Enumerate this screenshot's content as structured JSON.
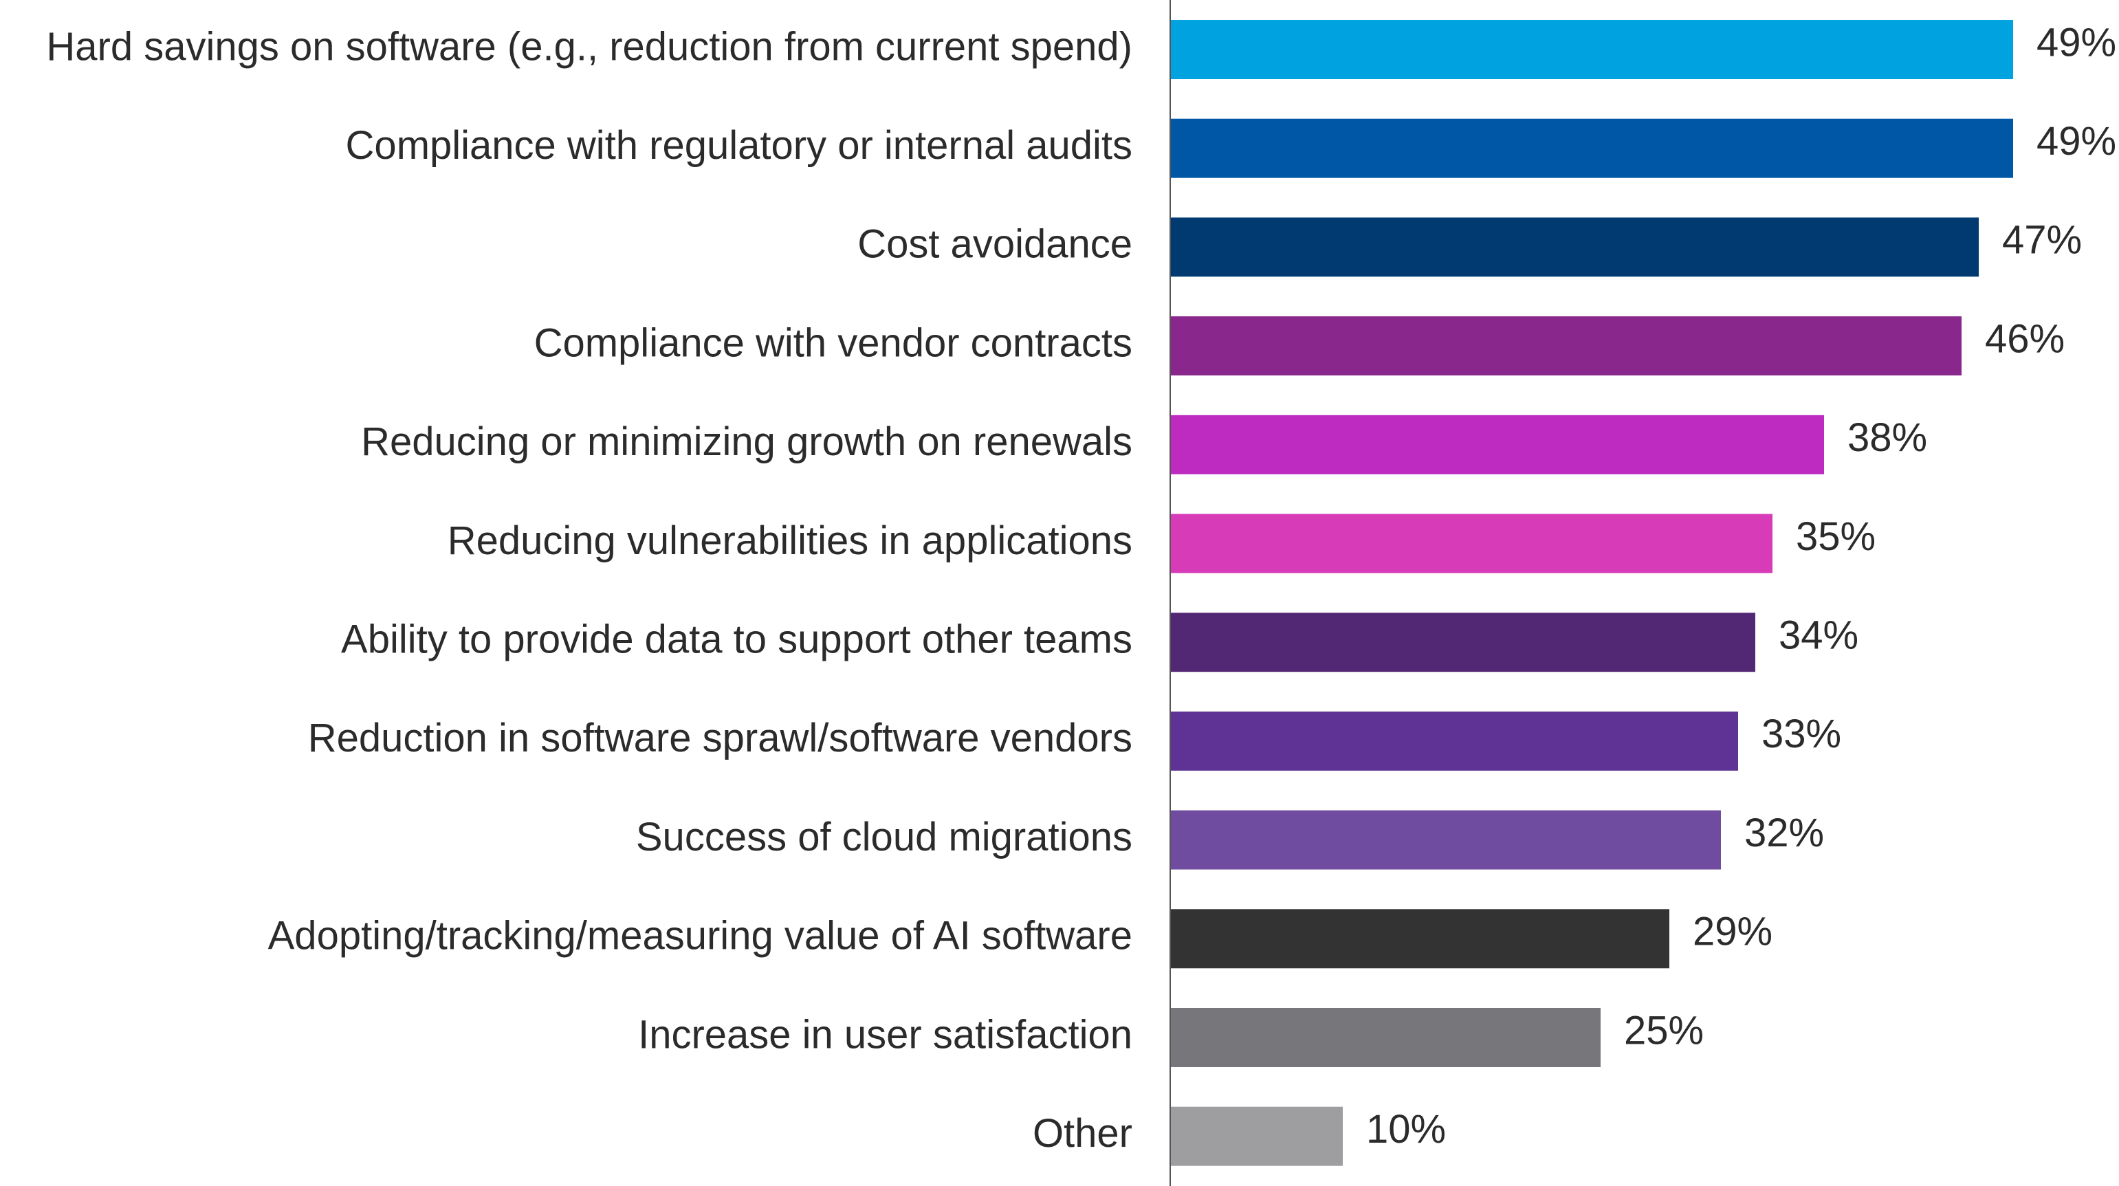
{
  "chart_data": {
    "type": "hbar",
    "categories": [
      "Hard savings on software (e.g., reduction from current spend)",
      "Compliance with regulatory or internal audits",
      "Cost avoidance",
      "Compliance with vendor contracts",
      "Reducing or minimizing growth on renewals",
      "Reducing vulnerabilities in applications",
      "Ability to provide data to support other teams",
      "Reduction in software sprawl/software vendors",
      "Success of cloud migrations",
      "Adopting/tracking/measuring value of AI software",
      "Increase in user satisfaction",
      "Other"
    ],
    "values": [
      49,
      49,
      47,
      46,
      38,
      35,
      34,
      33,
      32,
      29,
      25,
      10
    ],
    "value_labels": [
      "49%",
      "49%",
      "47%",
      "46%",
      "38%",
      "35%",
      "34%",
      "33%",
      "32%",
      "29%",
      "25%",
      "10%"
    ],
    "colors": [
      "#00a3e0",
      "#0057a5",
      "#003a70",
      "#8a278c",
      "#bd2bc0",
      "#d83bb8",
      "#522874",
      "#5f3395",
      "#6f4ca0",
      "#333333",
      "#77777b",
      "#9e9ea0"
    ]
  }
}
